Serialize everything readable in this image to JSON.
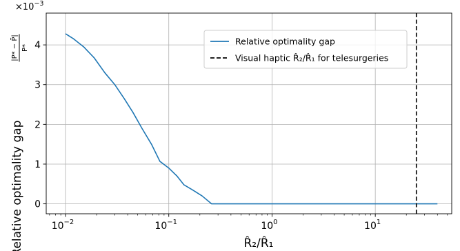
{
  "chart_data": {
    "type": "line",
    "xscale": "log",
    "xlim": [
      0.0065,
      55
    ],
    "ylim": [
      -0.00025,
      0.0048
    ],
    "y_multiplier_label": "×10",
    "y_multiplier_exp": "−3",
    "y_ticks": [
      0,
      0.001,
      0.002,
      0.003,
      0.004
    ],
    "y_tick_labels": [
      "0",
      "1",
      "2",
      "3",
      "4"
    ],
    "x_ticks": [
      0.01,
      0.1,
      1,
      10
    ],
    "x_tick_base": [
      "10",
      "10",
      "10",
      "10"
    ],
    "x_tick_exps": [
      "−2",
      "−1",
      "0",
      "1"
    ],
    "xlabel_tex": "R̂₂/R̂₁",
    "ylabel_prefix": "Relative optimality gap",
    "ylabel_frac_num": "|P* − P̃|",
    "ylabel_frac_den": "P*",
    "grid": true,
    "legend": {
      "placement": "top-right",
      "entries": [
        {
          "label": "Relative optimality gap",
          "style": "solid",
          "color": "#1f77b4"
        },
        {
          "label": "Visual haptic R̂₂/R̂₁ for telesurgeries",
          "style": "dashed",
          "color": "#000000"
        }
      ]
    },
    "series": [
      {
        "name": "Relative optimality gap",
        "color": "#1f77b4",
        "x": [
          0.01,
          0.012,
          0.015,
          0.019,
          0.024,
          0.03,
          0.037,
          0.045,
          0.055,
          0.068,
          0.082,
          0.1,
          0.12,
          0.14,
          0.17,
          0.21,
          0.26,
          0.3,
          1,
          10,
          40
        ],
        "y": [
          0.00428,
          0.00415,
          0.00395,
          0.00367,
          0.0033,
          0.003,
          0.00265,
          0.0023,
          0.0019,
          0.0015,
          0.00107,
          0.0009,
          0.0007,
          0.00048,
          0.00035,
          0.0002,
          0.0,
          0.0,
          0.0,
          0.0,
          0.0
        ]
      }
    ],
    "vline": {
      "x": 25,
      "color": "#000000",
      "style": "dashed"
    }
  }
}
